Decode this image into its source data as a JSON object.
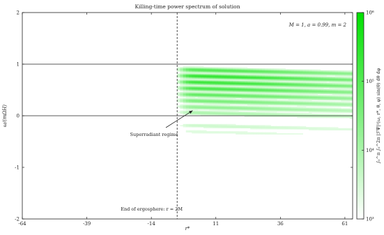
{
  "chart_data": {
    "type": "heatmap",
    "title": "Killing-time power spectrum of solution",
    "xlabel": "r*",
    "ylabel": "ω/(mΩH)",
    "xlim": [
      -64,
      64
    ],
    "ylim": [
      -2,
      2
    ],
    "x_ticks": [
      "-64",
      "-39",
      "-14",
      "11",
      "36",
      "61"
    ],
    "x_tick_values": [
      -64,
      -39,
      -14,
      11,
      36,
      61
    ],
    "y_ticks": [
      "-2",
      "-1",
      "0",
      "1",
      "2"
    ],
    "y_tick_values": [
      -2,
      -1,
      0,
      1,
      2
    ],
    "params_text": "M = 1, a = 0.99, m = 2",
    "horizontal_lines": [
      0,
      1
    ],
    "vertical_line": {
      "x": -4,
      "label": "End of ergosphere: r = 2M"
    },
    "annotation": {
      "text": "Superradiant regime",
      "arrow_to": [
        2,
        0.1
      ]
    },
    "colorbar": {
      "label": "∫₀^π ∫₀^2π |ℱΨ|²(ω, r*, θ, φ) sin(θ) dθ dφ",
      "scale": "log",
      "range": [
        1000,
        1000000
      ],
      "ticks": [
        "10³",
        "10⁴",
        "10⁵",
        "10⁶"
      ],
      "tick_values": [
        1000,
        10000,
        100000,
        1000000
      ],
      "color_low": "#ffffff",
      "color_high": "#00e000"
    },
    "bands": [
      {
        "omega": 0.9,
        "log_power_peak": 5.1
      },
      {
        "omega": 0.78,
        "log_power_peak": 5.5
      },
      {
        "omega": 0.66,
        "log_power_peak": 5.4
      },
      {
        "omega": 0.54,
        "log_power_peak": 5.2
      },
      {
        "omega": 0.42,
        "log_power_peak": 4.9
      },
      {
        "omega": 0.3,
        "log_power_peak": 4.6
      },
      {
        "omega": 0.18,
        "log_power_peak": 4.3
      },
      {
        "omega": 0.07,
        "log_power_peak": 4.0
      },
      {
        "omega": -0.18,
        "log_power_peak": 3.6
      },
      {
        "omega": -0.3,
        "log_power_peak": 3.4
      }
    ]
  }
}
